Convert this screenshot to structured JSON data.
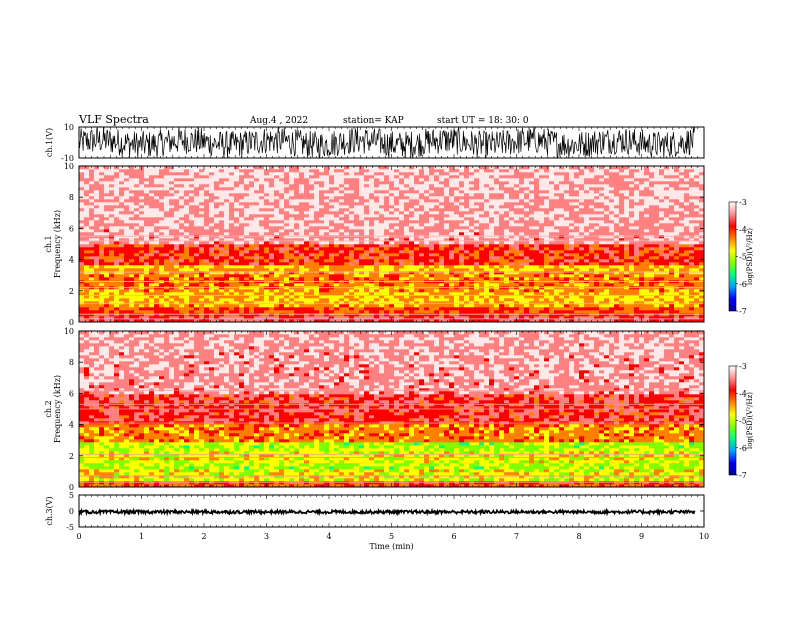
{
  "header": {
    "title": "VLF Spectra",
    "date": "Aug.4 , 2022",
    "station": "station= KAP",
    "start": "start UT = 18: 30: 0"
  },
  "colors": {
    "scale": [
      "#000090",
      "#0000ff",
      "#00a0ff",
      "#00ff80",
      "#80ff00",
      "#ffff00",
      "#ff8000",
      "#ff0000",
      "#ff8080",
      "#ffe8e8",
      "#ffffff"
    ]
  },
  "chart_data": [
    {
      "id": "ch1-waveform",
      "type": "line",
      "ylabel": "ch.1(V)",
      "ylim": [
        -10,
        10
      ],
      "yticks": [
        "10",
        "-10"
      ],
      "xlim": [
        0,
        10
      ]
    },
    {
      "id": "ch1-spectrogram",
      "type": "heatmap",
      "ylabel": "ch.1 Frequency (kHz)",
      "ylim": [
        0,
        10
      ],
      "yticks": [
        "0",
        "2",
        "4",
        "6",
        "8",
        "10"
      ],
      "xlim": [
        0,
        10
      ],
      "colorbar": {
        "label": "log(PSD)(V²/Hz)",
        "range": [
          -7,
          -3
        ],
        "ticks": [
          "-3",
          "-4",
          "-5",
          "-6",
          "-7"
        ]
      }
    },
    {
      "id": "ch2-spectrogram",
      "type": "heatmap",
      "ylabel": "ch.2 Frequency (kHz)",
      "ylim": [
        0,
        10
      ],
      "yticks": [
        "0",
        "2",
        "4",
        "6",
        "8",
        "10"
      ],
      "xlim": [
        0,
        10
      ],
      "colorbar": {
        "label": "log(PSD)(V²/Hz)",
        "range": [
          -7,
          -3
        ],
        "ticks": [
          "-3",
          "-4",
          "-5",
          "-6",
          "-7"
        ]
      }
    },
    {
      "id": "ch3-waveform",
      "type": "line",
      "ylabel": "ch.3(V)",
      "ylim": [
        -5,
        5
      ],
      "yticks": [
        "5",
        "0",
        "-5"
      ],
      "xlim": [
        0,
        10
      ],
      "xlabel": "Time (min)",
      "xticks": [
        "0",
        "1",
        "2",
        "3",
        "4",
        "5",
        "6",
        "7",
        "8",
        "9",
        "10"
      ]
    }
  ]
}
